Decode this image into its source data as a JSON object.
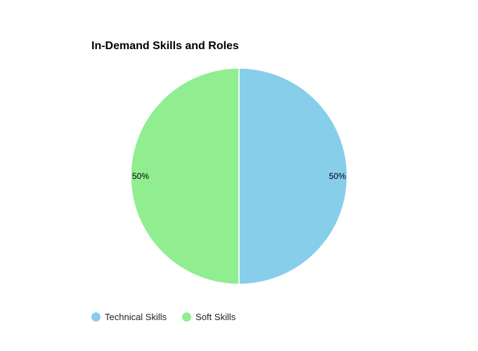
{
  "chart_data": {
    "type": "pie",
    "title": "In-Demand Skills and Roles",
    "slices": [
      {
        "label": "Technical Skills",
        "value": 50,
        "display": "50%",
        "color": "#87CEEB"
      },
      {
        "label": "Soft Skills",
        "value": 50,
        "display": "50%",
        "color": "#90EE90"
      }
    ],
    "legend_position": "bottom-left"
  }
}
